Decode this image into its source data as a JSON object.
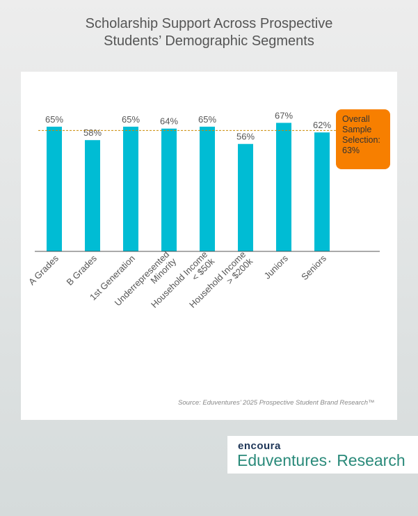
{
  "title_line1": "Scholarship Support Across Prospective",
  "title_line2": "Students’ Demographic Segments",
  "source": "Source: Eduventures’ 2025 Prospective Student Brand Research™",
  "logo": {
    "brand": "encoura",
    "name": "Eduventures· Research"
  },
  "colors": {
    "bar": "#00bcd4",
    "annotation": "#f77f00",
    "reference_line": "#c98a00"
  },
  "chart_data": {
    "type": "bar",
    "title": "Scholarship Support Across Prospective Students’ Demographic Segments",
    "categories": [
      "A Grades",
      "B Grades",
      "1st Generation",
      "Underrepresented\nMinority",
      "Household Income\n< $50k",
      "Household Income\n> $200k",
      "Juniors",
      "Seniors"
    ],
    "values": [
      65,
      58,
      65,
      64,
      65,
      56,
      67,
      62
    ],
    "value_labels": [
      "65%",
      "58%",
      "65%",
      "64%",
      "65%",
      "56%",
      "67%",
      "62%"
    ],
    "ylim": [
      0,
      100
    ],
    "reference_line": {
      "value": 63,
      "label": "Overall Sample Selection: 63%"
    },
    "xlabel": "",
    "ylabel": "",
    "grid": false
  }
}
